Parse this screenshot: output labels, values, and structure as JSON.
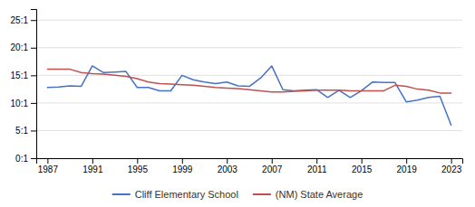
{
  "chart_data": {
    "type": "line",
    "x": [
      1987,
      1988,
      1989,
      1990,
      1991,
      1992,
      1993,
      1994,
      1995,
      1996,
      1997,
      1998,
      1999,
      2000,
      2001,
      2002,
      2003,
      2004,
      2005,
      2006,
      2007,
      2008,
      2009,
      2010,
      2011,
      2012,
      2013,
      2014,
      2015,
      2016,
      2017,
      2018,
      2019,
      2020,
      2021,
      2022,
      2023
    ],
    "series": [
      {
        "name": "Cliff Elementary School",
        "color": "#4472c4",
        "values": [
          12.8,
          12.9,
          13.1,
          13.0,
          16.7,
          15.5,
          15.6,
          15.7,
          12.8,
          12.8,
          12.2,
          12.2,
          15.0,
          14.2,
          13.8,
          13.5,
          13.8,
          13.1,
          13.0,
          14.5,
          16.7,
          12.4,
          12.2,
          12.3,
          12.4,
          11.0,
          12.3,
          11.0,
          12.2,
          13.8,
          13.7,
          13.7,
          10.2,
          10.5,
          11.0,
          11.2,
          6.0
        ]
      },
      {
        "name": "(NM) State Average",
        "color": "#c0504d",
        "values": [
          16.1,
          16.1,
          16.1,
          15.5,
          15.3,
          15.2,
          15.0,
          14.8,
          14.4,
          13.8,
          13.5,
          13.4,
          13.3,
          13.2,
          13.0,
          12.8,
          12.7,
          12.6,
          12.4,
          12.2,
          12.0,
          12.0,
          12.1,
          12.2,
          12.3,
          12.3,
          12.3,
          12.2,
          12.2,
          12.2,
          12.2,
          13.2,
          13.0,
          12.5,
          12.3,
          11.8,
          11.8
        ]
      }
    ],
    "xlim": [
      1986.0,
      2024.0
    ],
    "xticks": [
      1987,
      1991,
      1995,
      1999,
      2003,
      2007,
      2011,
      2015,
      2019,
      2023
    ],
    "ylim": [
      0,
      27
    ],
    "yticks": [
      {
        "value": 0,
        "label": "0:1"
      },
      {
        "value": 5,
        "label": "5:1"
      },
      {
        "value": 10,
        "label": "10:1"
      },
      {
        "value": 15,
        "label": "15:1"
      },
      {
        "value": 20,
        "label": "20:1"
      },
      {
        "value": 25,
        "label": "25:1"
      }
    ],
    "grid": true,
    "legend": "bottom"
  }
}
